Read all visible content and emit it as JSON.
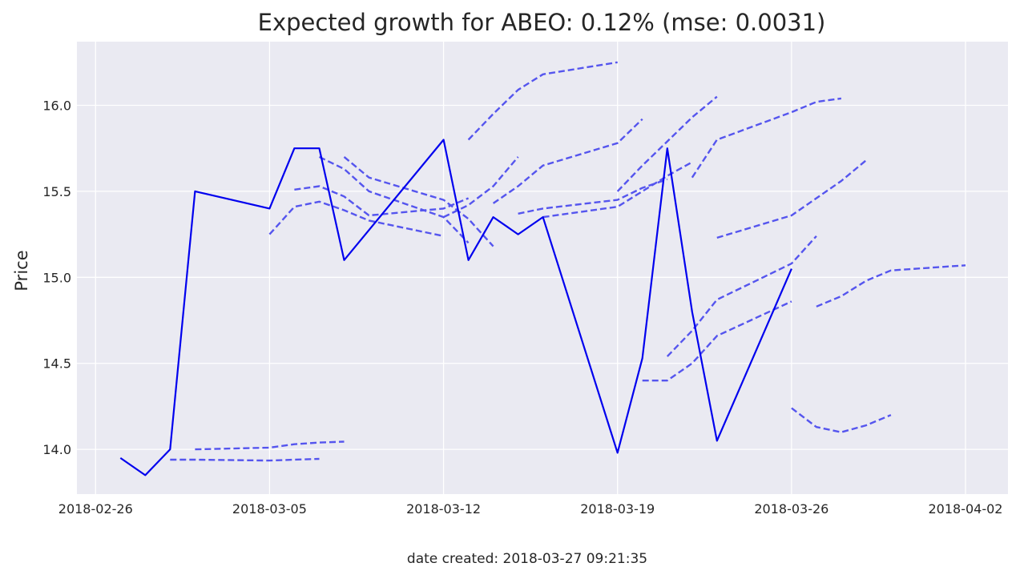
{
  "chart_data": {
    "type": "line",
    "title": "Expected growth for ABEO: 0.12% (mse: 0.0031)",
    "xlabel": "",
    "ylabel": "Price",
    "footer": "date created: 2018-03-27 09:21:35",
    "x_ticks": [
      "2018-02-26",
      "2018-03-05",
      "2018-03-12",
      "2018-03-19",
      "2018-03-26",
      "2018-04-02"
    ],
    "y_ticks": [
      "14.0",
      "14.5",
      "15.0",
      "15.5",
      "16.0"
    ],
    "xlim": [
      "2018-02-25T06:00:00",
      "2018-04-03T17:00:00"
    ],
    "ylim": [
      13.74,
      16.37
    ],
    "grid": true,
    "background": "#eaeaf2",
    "grid_color": "#ffffff",
    "actual_color": "#0000ee",
    "forecast_color": "#5555ee",
    "series": [
      {
        "style": "solid",
        "points": [
          [
            "2018-02-27",
            13.95
          ],
          [
            "2018-02-28",
            13.85
          ],
          [
            "2018-03-01",
            14.0
          ],
          [
            "2018-03-02",
            15.5
          ],
          [
            "2018-03-05",
            15.4
          ],
          [
            "2018-03-06",
            15.75
          ],
          [
            "2018-03-07",
            15.75
          ],
          [
            "2018-03-08",
            15.1
          ],
          [
            "2018-03-12",
            15.8
          ],
          [
            "2018-03-13",
            15.1
          ],
          [
            "2018-03-14",
            15.35
          ],
          [
            "2018-03-15",
            15.25
          ],
          [
            "2018-03-16",
            15.35
          ],
          [
            "2018-03-19",
            13.98
          ],
          [
            "2018-03-20",
            14.53
          ],
          [
            "2018-03-21",
            15.75
          ],
          [
            "2018-03-22",
            14.8
          ],
          [
            "2018-03-23",
            14.05
          ],
          [
            "2018-03-26",
            15.05
          ]
        ]
      },
      {
        "style": "dashed",
        "points": [
          [
            "2018-03-01",
            13.94
          ],
          [
            "2018-03-02",
            13.94
          ],
          [
            "2018-03-05",
            13.935
          ],
          [
            "2018-03-06",
            13.94
          ],
          [
            "2018-03-07",
            13.945
          ]
        ]
      },
      {
        "style": "dashed",
        "points": [
          [
            "2018-03-02",
            14.0
          ],
          [
            "2018-03-05",
            14.01
          ],
          [
            "2018-03-06",
            14.03
          ],
          [
            "2018-03-07",
            14.04
          ],
          [
            "2018-03-08",
            14.045
          ]
        ]
      },
      {
        "style": "dashed",
        "points": [
          [
            "2018-03-05",
            15.25
          ],
          [
            "2018-03-06",
            15.41
          ],
          [
            "2018-03-07",
            15.44
          ],
          [
            "2018-03-08",
            15.39
          ],
          [
            "2018-03-09",
            15.33
          ],
          [
            "2018-03-12",
            15.24
          ]
        ]
      },
      {
        "style": "dashed",
        "points": [
          [
            "2018-03-06",
            15.51
          ],
          [
            "2018-03-07",
            15.53
          ],
          [
            "2018-03-08",
            15.47
          ],
          [
            "2018-03-09",
            15.36
          ],
          [
            "2018-03-12",
            15.4
          ],
          [
            "2018-03-13",
            15.46
          ]
        ]
      },
      {
        "style": "dashed",
        "points": [
          [
            "2018-03-07",
            15.7
          ],
          [
            "2018-03-08",
            15.63
          ],
          [
            "2018-03-09",
            15.5
          ],
          [
            "2018-03-12",
            15.35
          ],
          [
            "2018-03-13",
            15.2
          ]
        ]
      },
      {
        "style": "dashed",
        "points": [
          [
            "2018-03-08",
            15.7
          ],
          [
            "2018-03-09",
            15.58
          ],
          [
            "2018-03-12",
            15.45
          ],
          [
            "2018-03-13",
            15.34
          ],
          [
            "2018-03-14",
            15.18
          ]
        ]
      },
      {
        "style": "dashed",
        "points": [
          [
            "2018-03-12",
            15.35
          ],
          [
            "2018-03-13",
            15.42
          ],
          [
            "2018-03-14",
            15.53
          ],
          [
            "2018-03-15",
            15.7
          ]
        ]
      },
      {
        "style": "dashed",
        "points": [
          [
            "2018-03-13",
            15.8
          ],
          [
            "2018-03-14",
            15.95
          ],
          [
            "2018-03-15",
            16.09
          ],
          [
            "2018-03-16",
            16.18
          ],
          [
            "2018-03-19",
            16.25
          ]
        ]
      },
      {
        "style": "dashed",
        "points": [
          [
            "2018-03-14",
            15.43
          ],
          [
            "2018-03-15",
            15.53
          ],
          [
            "2018-03-16",
            15.65
          ],
          [
            "2018-03-19",
            15.78
          ],
          [
            "2018-03-20",
            15.92
          ]
        ]
      },
      {
        "style": "dashed",
        "points": [
          [
            "2018-03-15",
            15.37
          ],
          [
            "2018-03-16",
            15.4
          ],
          [
            "2018-03-19",
            15.45
          ],
          [
            "2018-03-20",
            15.52
          ],
          [
            "2018-03-21",
            15.57
          ]
        ]
      },
      {
        "style": "dashed",
        "points": [
          [
            "2018-03-16",
            15.35
          ],
          [
            "2018-03-19",
            15.41
          ],
          [
            "2018-03-20",
            15.5
          ],
          [
            "2018-03-21",
            15.59
          ],
          [
            "2018-03-22",
            15.67
          ]
        ]
      },
      {
        "style": "dashed",
        "points": [
          [
            "2018-03-19",
            15.5
          ],
          [
            "2018-03-20",
            15.65
          ],
          [
            "2018-03-21",
            15.79
          ],
          [
            "2018-03-22",
            15.93
          ],
          [
            "2018-03-23",
            16.05
          ]
        ]
      },
      {
        "style": "dashed",
        "points": [
          [
            "2018-03-20",
            14.4
          ],
          [
            "2018-03-21",
            14.4
          ],
          [
            "2018-03-22",
            14.5
          ],
          [
            "2018-03-23",
            14.66
          ],
          [
            "2018-03-26",
            14.86
          ]
        ]
      },
      {
        "style": "dashed",
        "points": [
          [
            "2018-03-21",
            14.54
          ],
          [
            "2018-03-22",
            14.69
          ],
          [
            "2018-03-23",
            14.87
          ],
          [
            "2018-03-26",
            15.08
          ],
          [
            "2018-03-27",
            15.24
          ]
        ]
      },
      {
        "style": "dashed",
        "points": [
          [
            "2018-03-22",
            15.58
          ],
          [
            "2018-03-23",
            15.8
          ],
          [
            "2018-03-26",
            15.96
          ],
          [
            "2018-03-27",
            16.02
          ],
          [
            "2018-03-28",
            16.04
          ]
        ]
      },
      {
        "style": "dashed",
        "points": [
          [
            "2018-03-23",
            15.23
          ],
          [
            "2018-03-26",
            15.36
          ],
          [
            "2018-03-27",
            15.46
          ],
          [
            "2018-03-28",
            15.56
          ],
          [
            "2018-03-29",
            15.68
          ]
        ]
      },
      {
        "style": "dashed",
        "points": [
          [
            "2018-03-26",
            14.24
          ],
          [
            "2018-03-27",
            14.13
          ],
          [
            "2018-03-28",
            14.1
          ],
          [
            "2018-03-29",
            14.14
          ],
          [
            "2018-03-30",
            14.2
          ]
        ]
      },
      {
        "style": "dashed",
        "points": [
          [
            "2018-03-27",
            14.83
          ],
          [
            "2018-03-28",
            14.89
          ],
          [
            "2018-03-29",
            14.98
          ],
          [
            "2018-03-30",
            15.04
          ],
          [
            "2018-04-02",
            15.07
          ]
        ]
      }
    ]
  }
}
